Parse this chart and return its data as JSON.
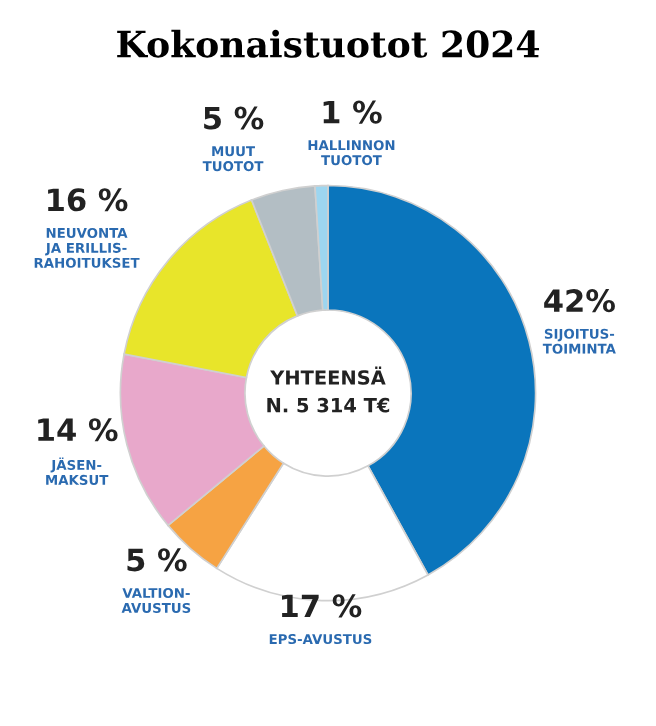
{
  "chart_data": {
    "type": "donut",
    "title": "Kokonaistuotot 2024",
    "categories": [
      "SIJOITUS-\nTOIMINTA",
      "EPS-AVUSTUS",
      "VALTION-\nAVUSTUS",
      "JÄSEN-\nMAKSUT",
      "NEUVONTA\nJA ERILLIS-\nRAHOITUKSET",
      "MUUT\nTUOTOT",
      "HALLINNON\nTUOTOT"
    ],
    "values": [
      42,
      17,
      5,
      14,
      16,
      5,
      1
    ],
    "value_labels": [
      "42%",
      "17 %",
      "5 %",
      "14 %",
      "16 %",
      "5 %",
      "1 %"
    ],
    "colors": [
      "#0a75bc",
      "#ffffff",
      "#f6a343",
      "#e8a8cb",
      "#e8e52a",
      "#b3bec4",
      "#9dd6f0"
    ],
    "annotations": [
      "YHTEENSÄ\nN. 5 314 T€"
    ]
  }
}
